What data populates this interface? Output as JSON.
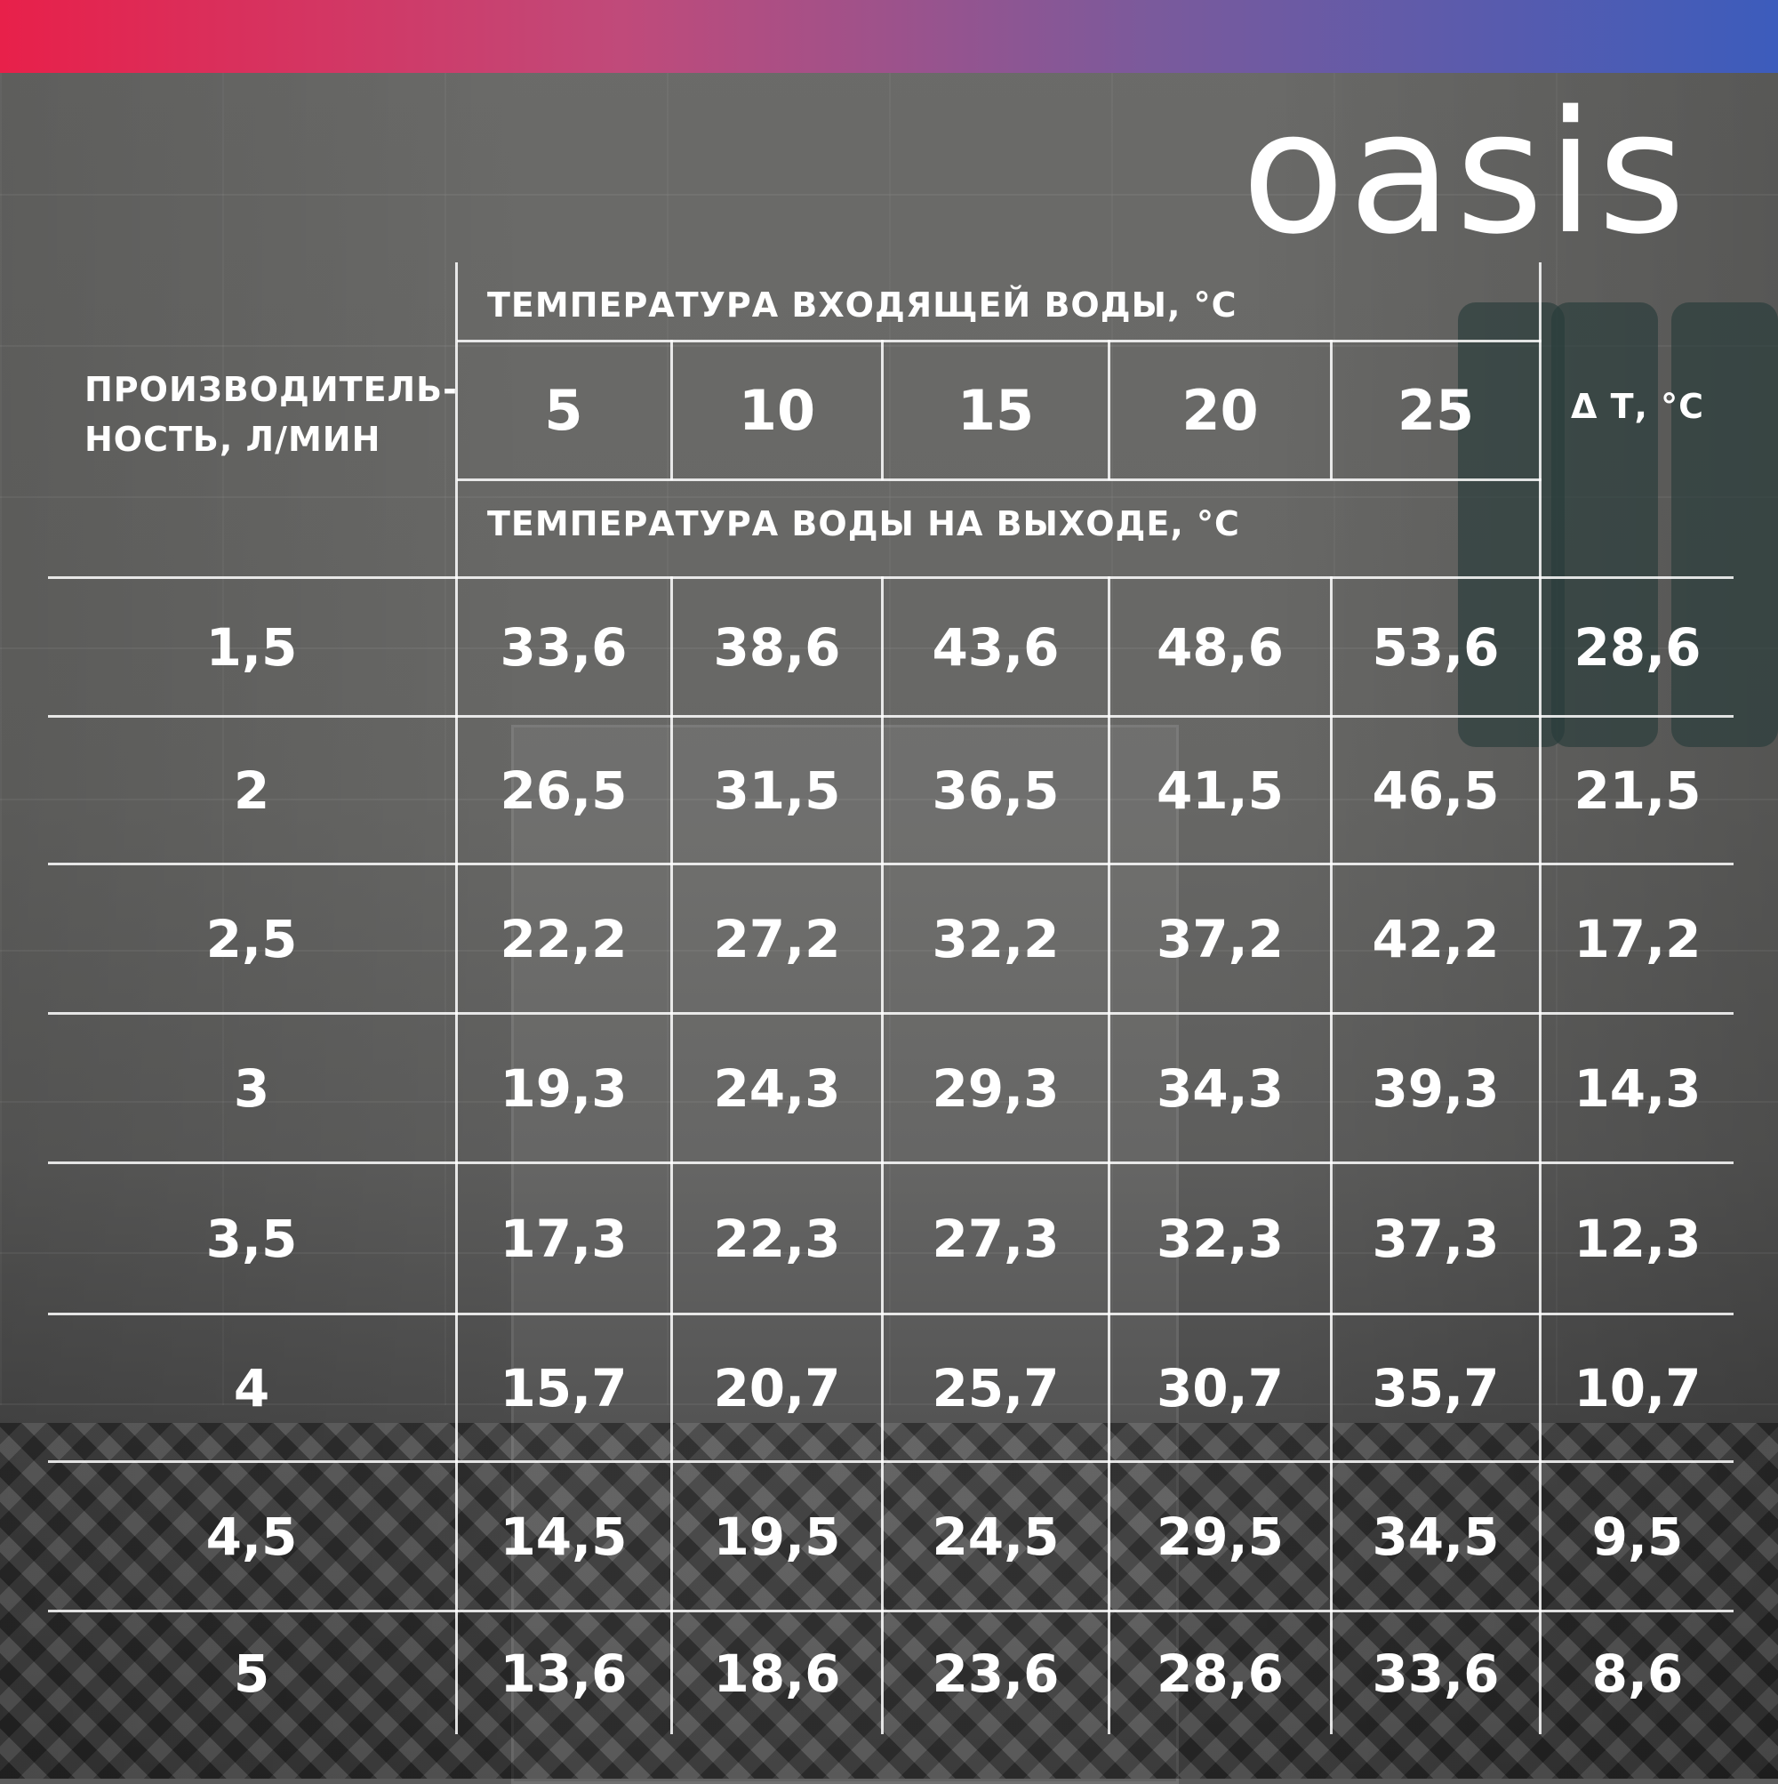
{
  "brand": {
    "logo_text": "oasis"
  },
  "table": {
    "performance_header_line1": "ПРОИЗВОДИТЕЛЬ-",
    "performance_header_line2": "НОСТЬ, Л/МИН",
    "inlet_temperature_header": "ТЕМПЕРАТУРА ВХОДЯЩЕЙ ВОДЫ, °С",
    "outlet_temperature_header": "ТЕМПЕРАТУРА ВОДЫ НА ВЫХОДЕ, °С",
    "delta_header": "Δ Т, °С",
    "inlet_temperatures": [
      "5",
      "10",
      "15",
      "20",
      "25"
    ],
    "rows": [
      {
        "flow": "1,5",
        "values": [
          "33,6",
          "38,6",
          "43,6",
          "48,6",
          "53,6"
        ],
        "delta": "28,6"
      },
      {
        "flow": "2",
        "values": [
          "26,5",
          "31,5",
          "36,5",
          "41,5",
          "46,5"
        ],
        "delta": "21,5"
      },
      {
        "flow": "2,5",
        "values": [
          "22,2",
          "27,2",
          "32,2",
          "37,2",
          "42,2"
        ],
        "delta": "17,2"
      },
      {
        "flow": "3",
        "values": [
          "19,3",
          "24,3",
          "29,3",
          "34,3",
          "39,3"
        ],
        "delta": "14,3"
      },
      {
        "flow": "3,5",
        "values": [
          "17,3",
          "22,3",
          "27,3",
          "32,3",
          "37,3"
        ],
        "delta": "12,3"
      },
      {
        "flow": "4",
        "values": [
          "15,7",
          "20,7",
          "25,7",
          "30,7",
          "35,7"
        ],
        "delta": "10,7"
      },
      {
        "flow": "4,5",
        "values": [
          "14,5",
          "19,5",
          "24,5",
          "29,5",
          "34,5"
        ],
        "delta": "9,5"
      },
      {
        "flow": "5",
        "values": [
          "13,6",
          "18,6",
          "23,6",
          "28,6",
          "33,6"
        ],
        "delta": "8,6"
      }
    ]
  },
  "colors": {
    "gradient_start": "#e8204a",
    "gradient_end": "#3c5cbc",
    "text": "#ffffff"
  }
}
